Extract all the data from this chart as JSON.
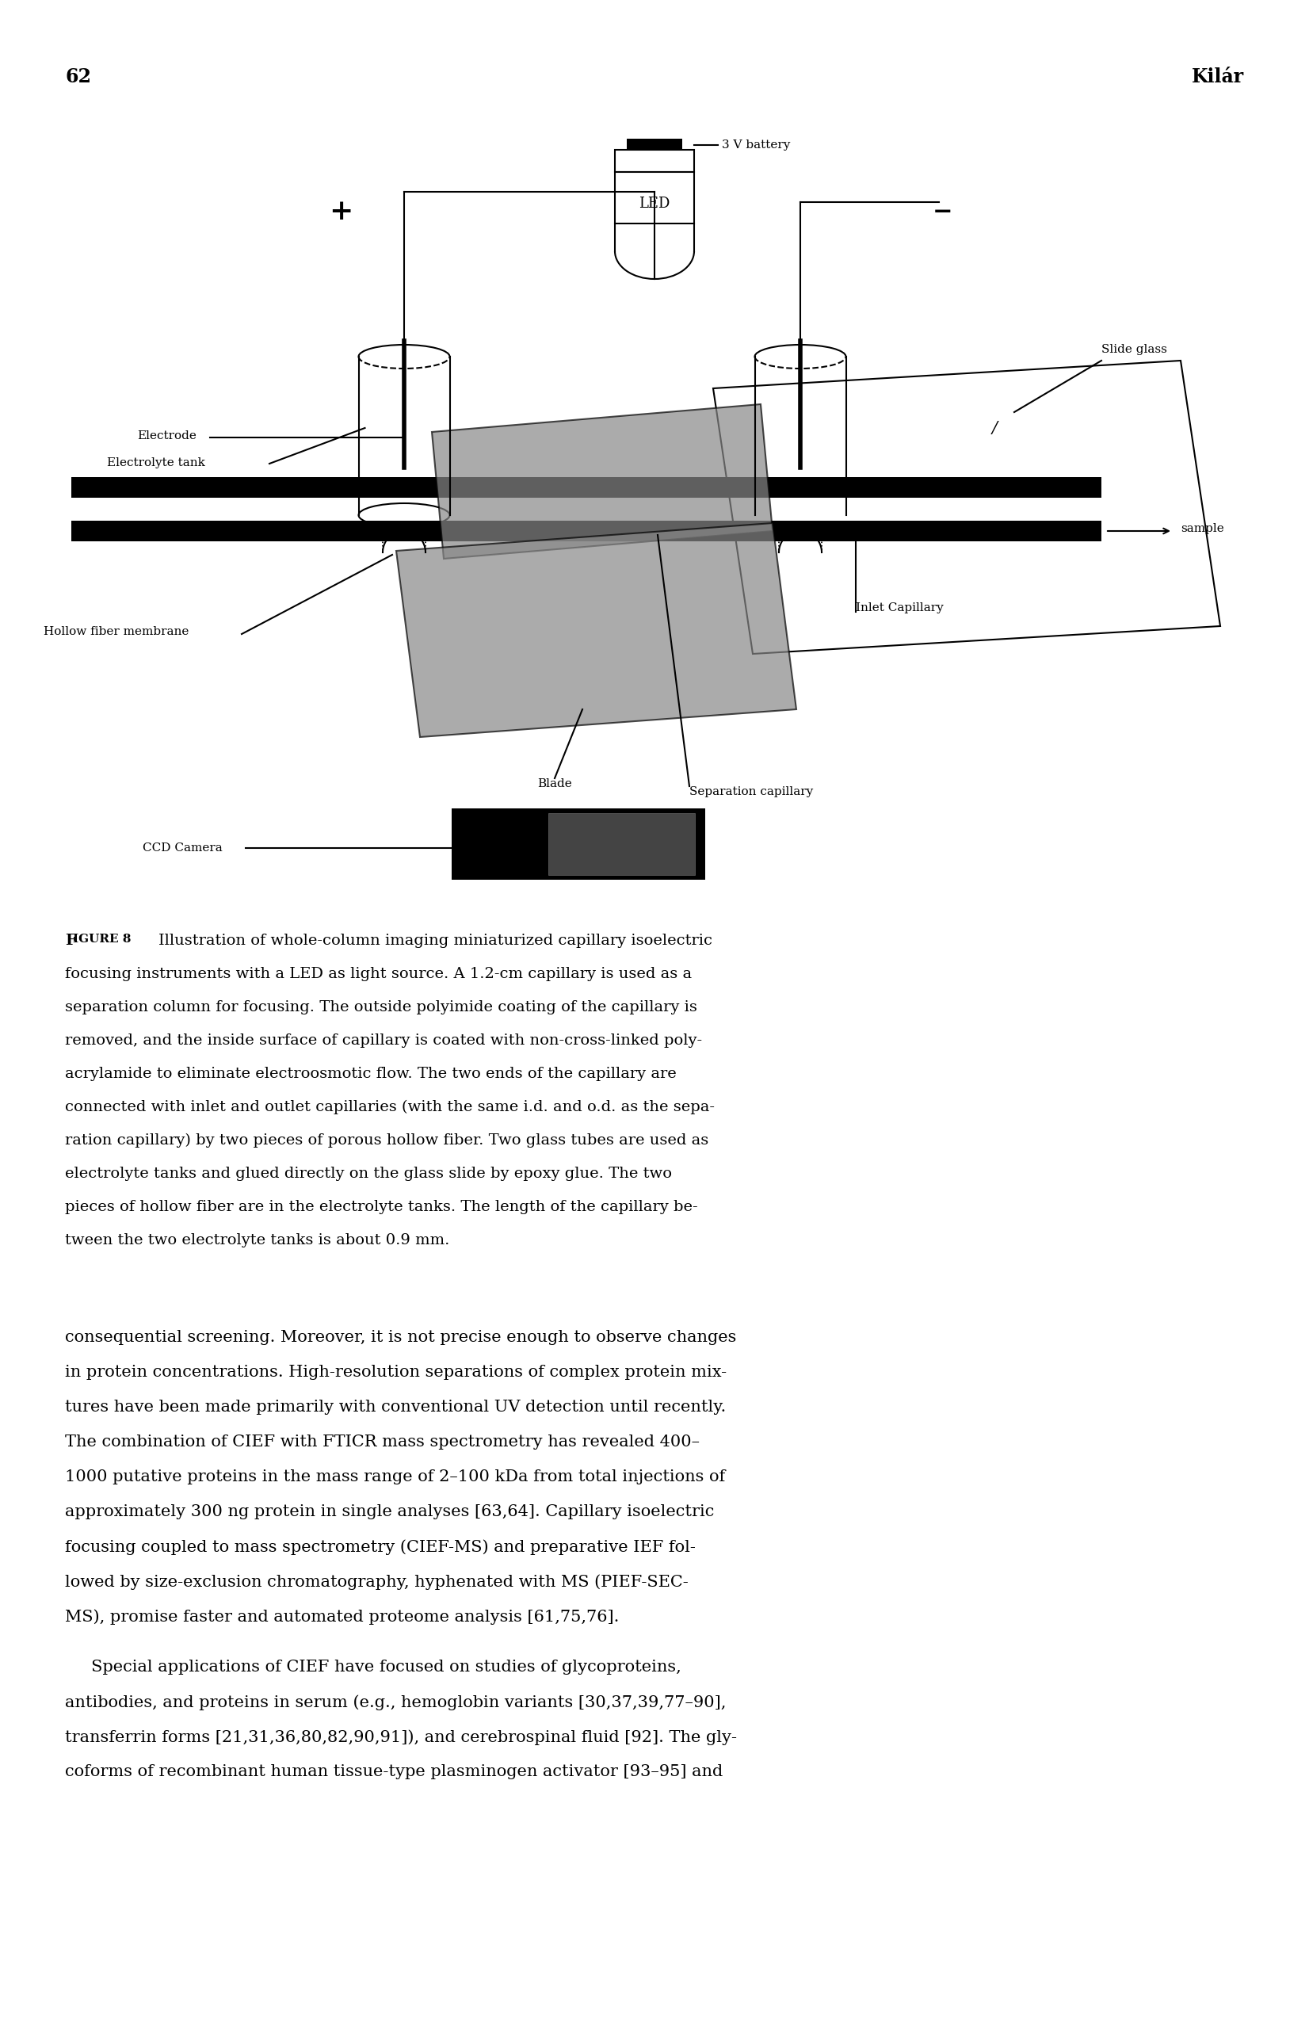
{
  "page_number": "62",
  "author": "Kilár",
  "background_color": "#ffffff",
  "text_color": "#000000",
  "fig_caption_label": "Figure 8",
  "fig_caption_label_bold": "F",
  "fig_caption_label_rest": "igure 8",
  "caption_line1": "Illustration of whole-column imaging miniaturized capillary isoelectric",
  "caption_line2": "focusing instruments with a LED as light source. A 1.2-cm capillary is used as a",
  "caption_line3": "separation column for focusing. The outside polyimide coating of the capillary is",
  "caption_line4": "removed, and the inside surface of capillary is coated with non-cross-linked poly-",
  "caption_line5": "acrylamide to eliminate electroosmotic flow. The two ends of the capillary are",
  "caption_line6": "connected with inlet and outlet capillaries (with the same i.d. and o.d. as the sepa-",
  "caption_line7": "ration capillary) by two pieces of porous hollow fiber. Two glass tubes are used as",
  "caption_line8": "electrolyte tanks and glued directly on the glass slide by epoxy glue. The two",
  "caption_line9": "pieces of hollow fiber are in the electrolyte tanks. The length of the capillary be-",
  "caption_line10": "tween the two electrolyte tanks is about 0.9 mm.",
  "body1_lines": [
    "consequential screening. Moreover, it is not precise enough to observe changes",
    "in protein concentrations. High-resolution separations of complex protein mix-",
    "tures have been made primarily with conventional UV detection until recently.",
    "The combination of CIEF with FTICR mass spectrometry has revealed 400–",
    "1000 putative proteins in the mass range of 2–100 kDa from total injections of",
    "approximately 300 ng protein in single analyses [63,64]. Capillary isoelectric",
    "focusing coupled to mass spectrometry (CIEF-MS) and preparative IEF fol-",
    "lowed by size-exclusion chromatography, hyphenated with MS (PIEF-SEC-",
    "MS), promise faster and automated proteome analysis [61,75,76]."
  ],
  "body2_lines": [
    "     Special applications of CIEF have focused on studies of glycoproteins,",
    "antibodies, and proteins in serum (e.g., hemoglobin variants [30,37,39,77–90],",
    "transferrin forms [21,31,36,80,82,90,91]), and cerebrospinal fluid [92]. The gly-",
    "coforms of recombinant human tissue-type plasminogen activator [93–95] and"
  ]
}
